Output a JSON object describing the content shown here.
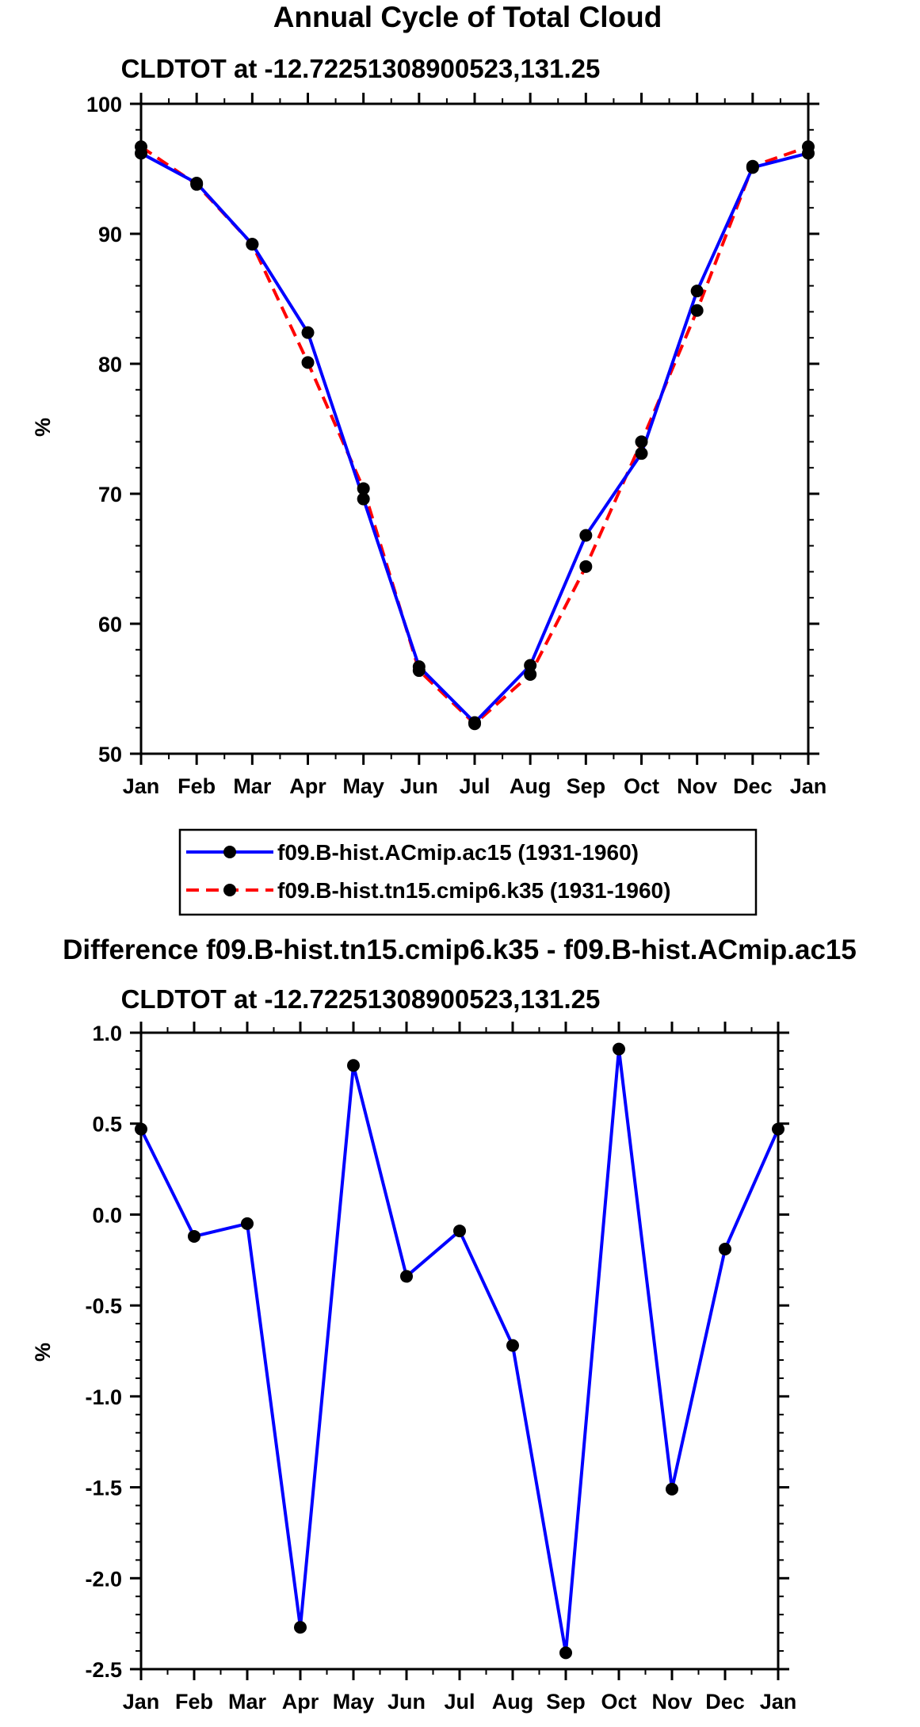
{
  "chart_data": [
    {
      "type": "line",
      "title": "Annual Cycle of Total Cloud",
      "subtitle": "CLDTOT at -12.72251308900523,131.25",
      "xlabel": "",
      "ylabel": "%",
      "ylim": [
        50,
        100
      ],
      "yticks": [
        50,
        60,
        70,
        80,
        90,
        100
      ],
      "grid": false,
      "categories": [
        "Jan",
        "Feb",
        "Mar",
        "Apr",
        "May",
        "Jun",
        "Jul",
        "Aug",
        "Sep",
        "Oct",
        "Nov",
        "Dec",
        "Jan"
      ],
      "series": [
        {
          "name": "f09.B-hist.ACmip.ac15 (1931-1960)",
          "color": "#0000ff",
          "style": "solid",
          "values": [
            96.2,
            93.9,
            89.2,
            82.4,
            69.6,
            56.7,
            52.4,
            56.8,
            66.8,
            73.1,
            85.6,
            95.1,
            96.2
          ]
        },
        {
          "name": "f09.B-hist.tn15.cmip6.k35 (1931-1960)",
          "color": "#ff0000",
          "style": "dashed",
          "values": [
            96.7,
            93.8,
            89.2,
            80.1,
            70.4,
            56.4,
            52.3,
            56.1,
            64.4,
            74.0,
            84.1,
            95.2,
            96.7
          ]
        }
      ],
      "legend": "below"
    },
    {
      "type": "line",
      "title": "Difference f09.B-hist.tn15.cmip6.k35 - f09.B-hist.ACmip.ac15",
      "subtitle": "CLDTOT at -12.72251308900523,131.25",
      "xlabel": "",
      "ylabel": "%",
      "ylim": [
        -2.5,
        1.0
      ],
      "yticks": [
        -2.5,
        -2.0,
        -1.5,
        -1.0,
        -0.5,
        0.0,
        0.5,
        1.0
      ],
      "ytick_labels": [
        "-2.5",
        "-2.0",
        "-1.5",
        "-1.0",
        "-0.5",
        "0.0",
        "0.5",
        "1.0"
      ],
      "grid": false,
      "categories": [
        "Jan",
        "Feb",
        "Mar",
        "Apr",
        "May",
        "Jun",
        "Jul",
        "Aug",
        "Sep",
        "Oct",
        "Nov",
        "Dec",
        "Jan"
      ],
      "series": [
        {
          "name": "Difference",
          "color": "#0000ff",
          "style": "solid",
          "values": [
            0.47,
            -0.12,
            -0.05,
            -2.27,
            0.82,
            -0.34,
            -0.09,
            -0.72,
            -2.41,
            0.91,
            -1.51,
            -0.19,
            0.47
          ]
        }
      ]
    }
  ]
}
